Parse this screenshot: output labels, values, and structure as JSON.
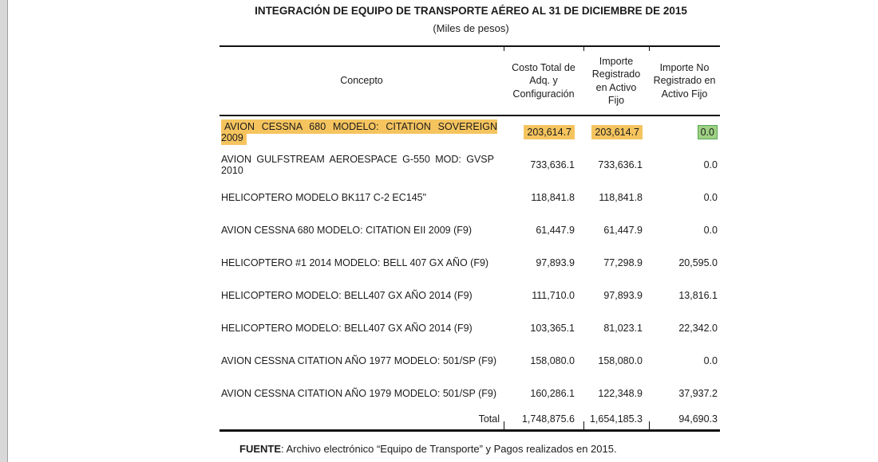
{
  "page": {
    "title": "INTEGRACIÓN DE EQUIPO DE TRANSPORTE AÉREO AL 31 DE DICIEMBRE DE 2015",
    "subtitle": "(Miles de pesos)",
    "source_label": "FUENTE",
    "source_text": ": Archivo electrónico “Equipo de Transporte” y Pagos realizados en 2015."
  },
  "table": {
    "columns": [
      "Concepto",
      "Costo Total de Adq. y Configuración",
      "Importe Registrado en Activo Fijo",
      "Importe No Registrado en Activo Fijo"
    ],
    "rows": [
      {
        "concepto": "AVION CESSNA 680 MODELO: CITATION SOVEREIGN 2009",
        "costo": "203,614.7",
        "registrado": "203,614.7",
        "no_registrado": "0.0",
        "highlight": true
      },
      {
        "concepto": "AVION GULFSTREAM AEROESPACE G-550 MOD: GVSP 2010",
        "costo": "733,636.1",
        "registrado": "733,636.1",
        "no_registrado": "0.0",
        "justify_wrap": true
      },
      {
        "concepto": "HELICOPTERO MODELO BK117 C-2 EC145\"",
        "costo": "118,841.8",
        "registrado": "118,841.8",
        "no_registrado": "0.0"
      },
      {
        "concepto": "AVION CESSNA 680 MODELO: CITATION EII 2009 (F9)",
        "costo": "61,447.9",
        "registrado": "61,447.9",
        "no_registrado": "0.0"
      },
      {
        "concepto": "HELICOPTERO #1 2014 MODELO: BELL 407 GX AÑO (F9)",
        "costo": "97,893.9",
        "registrado": "77,298.9",
        "no_registrado": "20,595.0"
      },
      {
        "concepto": "HELICOPTERO MODELO: BELL407 GX AÑO 2014 (F9)",
        "costo": "111,710.0",
        "registrado": "97,893.9",
        "no_registrado": "13,816.1"
      },
      {
        "concepto": "HELICOPTERO MODELO: BELL407 GX AÑO 2014 (F9)",
        "costo": "103,365.1",
        "registrado": "81,023.1",
        "no_registrado": "22,342.0"
      },
      {
        "concepto": "AVION CESSNA CITATION AÑO 1977 MODELO: 501/SP (F9)",
        "costo": "158,080.0",
        "registrado": "158,080.0",
        "no_registrado": "0.0"
      },
      {
        "concepto": "AVION CESSNA CITATION AÑO 1979 MODELO: 501/SP (F9)",
        "costo": "160,286.1",
        "registrado": "122,348.9",
        "no_registrado": "37,937.2"
      }
    ],
    "total": {
      "label": "Total",
      "costo": "1,748,875.6",
      "registrado": "1,654,185.3",
      "no_registrado": "94,690.3"
    },
    "highlight_colors": {
      "orange": "#F5C45F",
      "green_fill": "#9FD184",
      "green_border": "#54A552"
    }
  }
}
